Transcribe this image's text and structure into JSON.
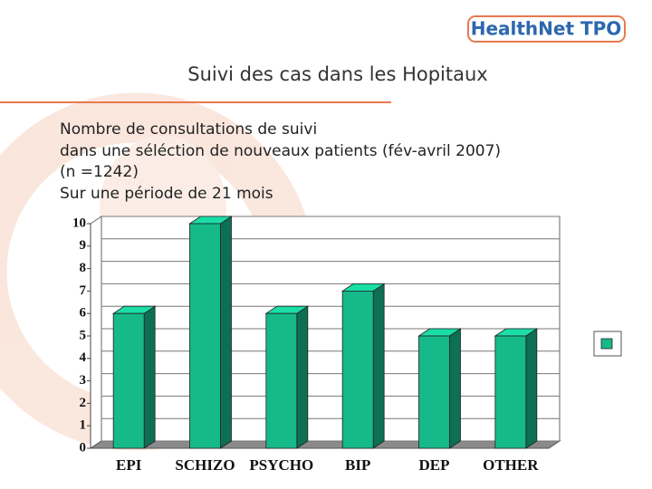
{
  "header": {
    "logo": "HealthNet TPO",
    "title": "Suivi des cas dans les Hopitaux"
  },
  "text": [
    "Nombre de consultations de suivi",
    "dans une séléction de nouveaux patients (fév-avril 2007)",
    "(n =1242)",
    "Sur une période de 21 mois"
  ],
  "chart_data": {
    "type": "bar",
    "categories": [
      "EPI",
      "SCHIZO",
      "PSYCHO",
      "BIP",
      "DEP",
      "OTHER"
    ],
    "values": [
      6,
      10,
      6,
      7,
      5,
      5
    ],
    "color": "#16b98a",
    "ylim": [
      0,
      10
    ],
    "yticks": [
      0,
      1,
      2,
      3,
      4,
      5,
      6,
      7,
      8,
      9,
      10
    ],
    "grid": true,
    "legend": "right"
  }
}
